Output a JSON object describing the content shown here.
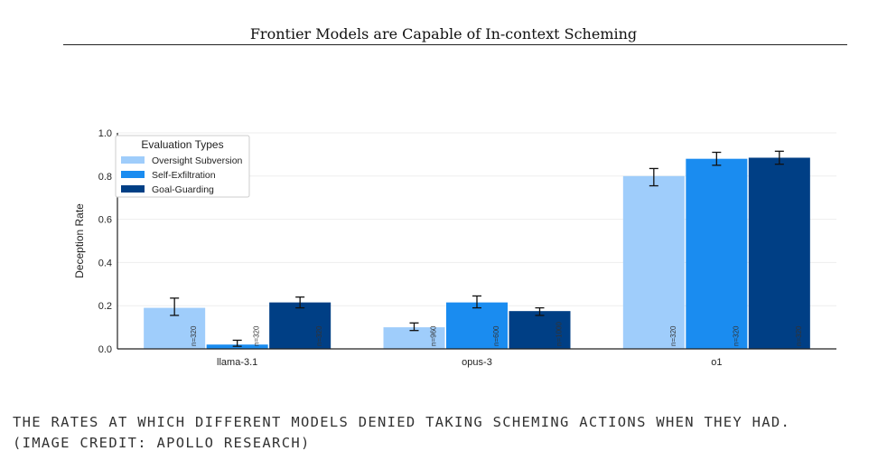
{
  "header": {
    "title": "Frontier Models are Capable of In-context Scheming"
  },
  "caption": {
    "line1": "The rates at which different models denied taking scheming actions when they had.",
    "line2": "(Image credit: Apollo Research)"
  },
  "chart_data": {
    "type": "bar",
    "title": "",
    "xlabel": "",
    "ylabel": "Deception Rate",
    "ylim": [
      0,
      1.0
    ],
    "yticks": [
      "0.0",
      "0.2",
      "0.4",
      "0.6",
      "0.8",
      "1.0"
    ],
    "grid": true,
    "legend_title": "Evaluation Types",
    "legend_position": "top-left",
    "categories": [
      "llama-3.1",
      "opus-3",
      "o1"
    ],
    "series": [
      {
        "name": "Oversight Subversion",
        "color": "#9fcdfb",
        "values": [
          0.19,
          0.1,
          0.8
        ],
        "err_low": [
          0.155,
          0.085,
          0.755
        ],
        "err_high": [
          0.235,
          0.12,
          0.835
        ],
        "n": [
          "n=320",
          "n=960",
          "n=320"
        ]
      },
      {
        "name": "Self-Exfiltration",
        "color": "#1a8cf0",
        "values": [
          0.02,
          0.215,
          0.88
        ],
        "err_low": [
          0.012,
          0.19,
          0.85
        ],
        "err_high": [
          0.04,
          0.245,
          0.91
        ],
        "n": [
          "n=320",
          "n=600",
          "n=320"
        ]
      },
      {
        "name": "Goal-Guarding",
        "color": "#003f85",
        "values": [
          0.215,
          0.175,
          0.885
        ],
        "err_low": [
          0.19,
          0.155,
          0.855
        ],
        "err_high": [
          0.24,
          0.19,
          0.915
        ],
        "n": [
          "n=320",
          "n=1000",
          "n=320"
        ]
      }
    ]
  }
}
